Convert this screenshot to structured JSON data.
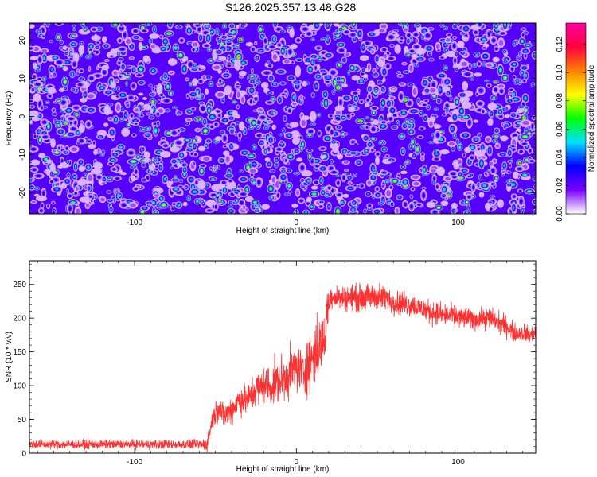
{
  "title": "S126.2025.357.13.48.G28",
  "chart_data": [
    {
      "type": "heatmap",
      "name": "spectrogram",
      "xlabel": "Height of straight line (km)",
      "ylabel": "Frequency (Hz)",
      "xlim": [
        -165,
        148
      ],
      "ylim": [
        -25.5,
        24.5
      ],
      "xticks": [
        -100,
        0,
        100
      ],
      "yticks": [
        -20,
        -10,
        0,
        10,
        20
      ],
      "colorbar": {
        "label": "Normalized spectral amplitude",
        "range": [
          0,
          0.135
        ],
        "ticks": [
          0.0,
          0.02,
          0.04,
          0.06,
          0.08,
          0.1,
          0.12
        ],
        "tick_labels": [
          "0.00",
          "0.02",
          "0.04",
          "0.06",
          "0.08",
          "0.10",
          "0.12"
        ],
        "colors": [
          "#ffffff",
          "#7a00ff",
          "#0000ff",
          "#00e0ff",
          "#00ff00",
          "#ffff00",
          "#ff7f00",
          "#ff0040",
          "#ff00a0"
        ]
      },
      "pattern": "uniform speckled noise across all frequencies and heights; background ~0.02 (blue/purple), scattered blobs up to ~0.13"
    },
    {
      "type": "line",
      "name": "snr",
      "xlabel": "Height of straight line (km)",
      "ylabel": "SNR (10 * v/v)",
      "xlim": [
        -165,
        148
      ],
      "ylim": [
        0,
        285
      ],
      "xticks": [
        -100,
        0,
        100
      ],
      "yticks": [
        0,
        50,
        100,
        150,
        200,
        250
      ],
      "color": "#ff3030",
      "series": [
        {
          "name": "SNR",
          "x": [
            -165,
            -150,
            -140,
            -130,
            -120,
            -110,
            -100,
            -90,
            -80,
            -70,
            -60,
            -55,
            -52,
            -48,
            -45,
            -40,
            -35,
            -30,
            -25,
            -20,
            -15,
            -10,
            -5,
            0,
            5,
            10,
            15,
            18,
            19,
            22,
            25,
            30,
            40,
            50,
            60,
            70,
            80,
            90,
            100,
            110,
            120,
            130,
            135,
            140,
            145,
            148
          ],
          "y": [
            13,
            13,
            13,
            13,
            13,
            13,
            13,
            13,
            13,
            13,
            13,
            13,
            50,
            68,
            55,
            65,
            80,
            78,
            95,
            100,
            100,
            108,
            115,
            128,
            120,
            145,
            160,
            170,
            215,
            235,
            230,
            230,
            230,
            232,
            225,
            220,
            212,
            205,
            202,
            198,
            200,
            188,
            178,
            178,
            175,
            178
          ]
        }
      ],
      "noise_amplitude": [
        6,
        6,
        6,
        6,
        6,
        6,
        6,
        6,
        6,
        6,
        6,
        10,
        14,
        16,
        16,
        18,
        20,
        22,
        24,
        24,
        28,
        30,
        30,
        32,
        30,
        45,
        40,
        30,
        25,
        16,
        16,
        16,
        18,
        18,
        16,
        16,
        15,
        15,
        14,
        14,
        14,
        14,
        12,
        12,
        12,
        10
      ]
    }
  ]
}
